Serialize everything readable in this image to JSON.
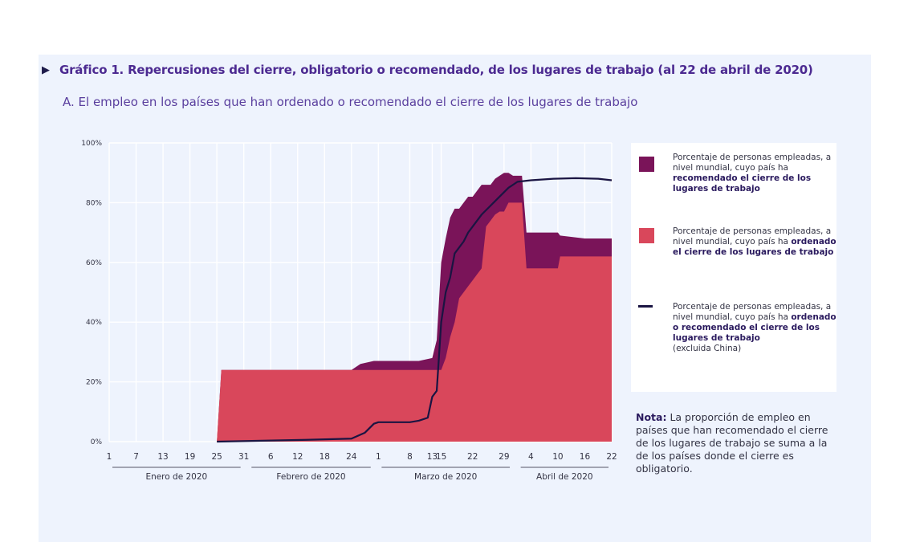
{
  "header": {
    "title_marker": "▶",
    "title": "Gráfico 1. Repercusiones del cierre, obligatorio o recomendado, de los lugares de trabajo (al 22 de abril de 2020)",
    "subtitle": "A. El empleo en los países que han ordenado o recomendado el cierre de los lugares de trabajo"
  },
  "colors": {
    "recommended": "#7a1459",
    "ordered": "#d9475b",
    "line": "#1a1442",
    "panel": "#eef3fd"
  },
  "legend": {
    "items": [
      {
        "text_before": "Porcentaje de personas empleadas, a nivel mundial, cuyo país ha ",
        "text_bold": "recomendado el cierre de los lugares de trabajo",
        "text_after": ""
      },
      {
        "text_before": "Porcentaje de personas empleadas, a nivel mundial, cuyo país ha ",
        "text_bold": "ordenado el cierre de los lugares de trabajo",
        "text_after": ""
      },
      {
        "text_before": "Porcentaje de personas empleadas, a nivel mundial, cuyo país ha ",
        "text_bold": "ordenado o recomendado el cierre de los lugares de trabajo",
        "text_after": "(excluida China)"
      }
    ]
  },
  "note": {
    "label": "Nota:",
    "text": " La proporción de empleo en países que han recomendado el cierre de los lugares de trabajo se suma a la de los países donde el cierre es obligatorio."
  },
  "chart_data": {
    "type": "area",
    "x_unit": "día (1 = 1 de enero de 2020)",
    "x_tick_labels": [
      "1",
      "7",
      "13",
      "19",
      "25",
      "31",
      "6",
      "12",
      "18",
      "24",
      "1",
      "8",
      "13",
      "15",
      "22",
      "29",
      "4",
      "10",
      "16",
      "22"
    ],
    "x_tick_days": [
      1,
      7,
      13,
      19,
      25,
      31,
      37,
      43,
      49,
      55,
      61,
      68,
      73,
      75,
      82,
      89,
      95,
      101,
      107,
      113
    ],
    "month_groups": [
      {
        "label": "Enero de 2020",
        "start_day": 1,
        "end_day": 31
      },
      {
        "label": "Febrero de 2020",
        "start_day": 32,
        "end_day": 60
      },
      {
        "label": "Marzo de 2020",
        "start_day": 61,
        "end_day": 91
      },
      {
        "label": "Abril de 2020",
        "start_day": 92,
        "end_day": 113
      }
    ],
    "y_ticks": [
      0,
      20,
      40,
      60,
      80,
      100
    ],
    "y_tick_labels": [
      "0%",
      "20%",
      "40%",
      "60%",
      "80%",
      "100%"
    ],
    "ylim": [
      0,
      100
    ],
    "xlim": [
      1,
      113
    ],
    "grid": true,
    "legend_position": "right",
    "series": [
      {
        "key": "ordered",
        "style": "area",
        "x": [
          25,
          26,
          55,
          56,
          57,
          60,
          61,
          65,
          70,
          73,
          74,
          75,
          76,
          77,
          78,
          79,
          80,
          81,
          82,
          83,
          84,
          85,
          86,
          87,
          88,
          89,
          90,
          91,
          92,
          93,
          94,
          95,
          101,
          101.5,
          113
        ],
        "values": [
          0,
          24,
          24,
          24,
          24,
          24,
          24,
          24,
          24,
          24,
          24,
          24,
          28,
          35,
          40,
          48,
          50,
          52,
          54,
          56,
          58,
          72,
          74,
          76,
          77,
          77,
          80,
          80,
          80,
          80,
          58,
          58,
          58,
          62,
          62
        ]
      },
      {
        "key": "recommended",
        "style": "stacked-top",
        "x": [
          25,
          26,
          55,
          56,
          57,
          60,
          61,
          65,
          70,
          73,
          74,
          75,
          76,
          77,
          78,
          79,
          80,
          81,
          82,
          83,
          84,
          85,
          86,
          87,
          88,
          89,
          90,
          91,
          92,
          93,
          94,
          95,
          101,
          101.5,
          107,
          113
        ],
        "values": [
          0,
          24,
          24,
          25,
          26,
          27,
          27,
          27,
          27,
          28,
          34,
          60,
          68,
          75,
          78,
          78,
          80,
          82,
          82,
          84,
          86,
          86,
          86,
          88,
          89,
          90,
          90,
          89,
          89,
          89,
          70,
          70,
          70,
          69,
          68,
          68
        ]
      },
      {
        "key": "total_excl_china",
        "style": "line",
        "x": [
          25,
          35,
          45,
          55,
          58,
          60,
          61,
          64,
          68,
          70,
          72,
          73,
          74,
          75,
          76,
          77,
          78,
          79,
          80,
          81,
          82,
          84,
          86,
          88,
          90,
          92,
          95,
          100,
          105,
          110,
          113
        ],
        "values": [
          0,
          0.3,
          0.6,
          1,
          3,
          6,
          6.5,
          6.5,
          6.5,
          7,
          8,
          15,
          17,
          40,
          50,
          55,
          63,
          65,
          67,
          70,
          72,
          76,
          79,
          82,
          85,
          87,
          87.5,
          88,
          88.2,
          88,
          87.5
        ]
      }
    ]
  }
}
